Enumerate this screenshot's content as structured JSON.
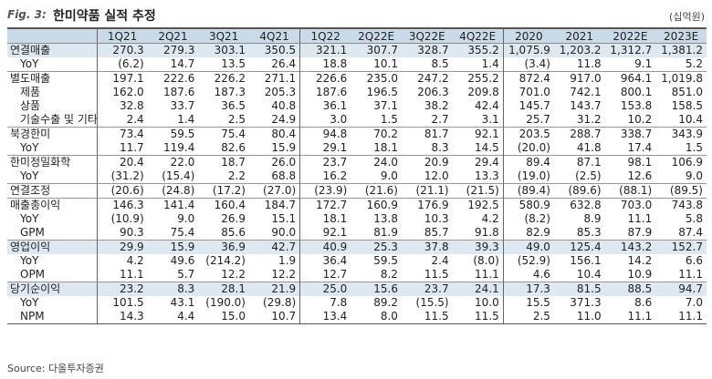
{
  "header": {
    "fig_label": "Fig. 3:",
    "title": "한미약품 실적 추정",
    "unit": "(십억원)"
  },
  "table": {
    "columns": [
      "1Q21",
      "2Q21",
      "3Q21",
      "4Q21",
      "1Q22",
      "2Q22E",
      "3Q22E",
      "4Q22E",
      "2020",
      "2021",
      "2022E",
      "2023E"
    ],
    "rows": [
      {
        "label": "연결매출",
        "values": [
          "270.3",
          "279.3",
          "303.1",
          "350.5",
          "321.1",
          "307.7",
          "328.7",
          "355.2",
          "1,075.9",
          "1,203.2",
          "1,312.7",
          "1,381.2"
        ],
        "style": "hl"
      },
      {
        "label": "YoY",
        "values": [
          "(6.2)",
          "14.7",
          "13.5",
          "26.4",
          "18.8",
          "10.1",
          "8.5",
          "1.4",
          "(3.4)",
          "11.8",
          "9.1",
          "5.2"
        ],
        "style": "sub"
      },
      {
        "label": "별도매출",
        "values": [
          "197.1",
          "222.6",
          "226.2",
          "271.1",
          "226.6",
          "235.0",
          "247.2",
          "255.2",
          "872.4",
          "917.0",
          "964.1",
          "1,019.8"
        ],
        "style": "grp"
      },
      {
        "label": "제품",
        "values": [
          "162.0",
          "187.6",
          "187.3",
          "205.3",
          "187.6",
          "196.5",
          "206.3",
          "209.8",
          "701.0",
          "742.1",
          "800.1",
          "851.0"
        ],
        "style": "sub"
      },
      {
        "label": "상품",
        "values": [
          "32.8",
          "33.7",
          "36.5",
          "40.8",
          "36.1",
          "37.1",
          "38.2",
          "42.4",
          "145.7",
          "143.7",
          "153.8",
          "158.5"
        ],
        "style": "sub"
      },
      {
        "label": "기술수출 및 기타",
        "values": [
          "2.4",
          "1.4",
          "2.5",
          "24.9",
          "3.0",
          "1.5",
          "2.7",
          "3.1",
          "25.7",
          "31.2",
          "10.2",
          "10.4"
        ],
        "style": "sub"
      },
      {
        "label": "북경한미",
        "values": [
          "73.4",
          "59.5",
          "75.4",
          "80.4",
          "94.8",
          "70.2",
          "81.7",
          "92.1",
          "203.5",
          "288.7",
          "338.7",
          "343.9"
        ],
        "style": "grp"
      },
      {
        "label": "YoY",
        "values": [
          "11.7",
          "119.4",
          "82.6",
          "15.9",
          "29.1",
          "18.1",
          "8.3",
          "14.5",
          "(20.0)",
          "41.8",
          "17.4",
          "1.5"
        ],
        "style": "sub"
      },
      {
        "label": "한미정밀화학",
        "values": [
          "20.4",
          "22.0",
          "18.7",
          "26.0",
          "23.7",
          "24.0",
          "20.9",
          "29.4",
          "89.4",
          "87.1",
          "98.1",
          "106.9"
        ],
        "style": "grp"
      },
      {
        "label": "YoY",
        "values": [
          "(31.2)",
          "(15.4)",
          "2.2",
          "68.8",
          "16.2",
          "9.0",
          "12.0",
          "13.3",
          "(19.0)",
          "(2.5)",
          "12.6",
          "9.0"
        ],
        "style": "sub"
      },
      {
        "label": "연결조정",
        "values": [
          "(20.6)",
          "(24.8)",
          "(17.2)",
          "(27.0)",
          "(23.9)",
          "(21.6)",
          "(21.1)",
          "(21.5)",
          "(89.4)",
          "(89.6)",
          "(88.1)",
          "(89.5)"
        ],
        "style": "grp"
      },
      {
        "label": "매출총이익",
        "values": [
          "146.3",
          "141.4",
          "160.4",
          "184.7",
          "172.7",
          "160.9",
          "176.9",
          "192.5",
          "580.9",
          "632.8",
          "703.0",
          "743.8"
        ],
        "style": "grp"
      },
      {
        "label": "YoY",
        "values": [
          "(10.9)",
          "9.0",
          "26.9",
          "15.1",
          "18.1",
          "13.8",
          "10.3",
          "4.2",
          "(8.2)",
          "8.9",
          "11.1",
          "5.8"
        ],
        "style": "sub"
      },
      {
        "label": "GPM",
        "values": [
          "90.3",
          "75.4",
          "85.6",
          "90.0",
          "92.1",
          "81.9",
          "85.7",
          "91.8",
          "82.9",
          "85.3",
          "87.9",
          "87.4"
        ],
        "style": "sub"
      },
      {
        "label": "영업이익",
        "values": [
          "29.9",
          "15.9",
          "36.9",
          "42.7",
          "40.9",
          "25.3",
          "37.8",
          "39.3",
          "49.0",
          "125.4",
          "143.2",
          "152.7"
        ],
        "style": "hl"
      },
      {
        "label": "YoY",
        "values": [
          "4.2",
          "49.6",
          "(214.2)",
          "1.9",
          "36.4",
          "59.5",
          "2.4",
          "(8.0)",
          "(52.9)",
          "156.1",
          "14.2",
          "6.6"
        ],
        "style": "sub"
      },
      {
        "label": "OPM",
        "values": [
          "11.1",
          "5.7",
          "12.2",
          "12.2",
          "12.7",
          "8.2",
          "11.5",
          "11.1",
          "4.6",
          "10.4",
          "10.9",
          "11.1"
        ],
        "style": "sub"
      },
      {
        "label": "당기순이익",
        "values": [
          "23.2",
          "8.3",
          "28.1",
          "21.9",
          "25.0",
          "15.6",
          "23.7",
          "24.1",
          "17.3",
          "81.5",
          "88.5",
          "94.7"
        ],
        "style": "hl"
      },
      {
        "label": "YoY",
        "values": [
          "101.5",
          "43.1",
          "(190.0)",
          "(29.8)",
          "7.8",
          "89.2",
          "(15.5)",
          "10.0",
          "15.5",
          "371.3",
          "8.6",
          "7.0"
        ],
        "style": "sub"
      },
      {
        "label": "NPM",
        "values": [
          "14.3",
          "4.4",
          "15.0",
          "10.7",
          "13.4",
          "8.0",
          "11.5",
          "11.5",
          "2.5",
          "11.0",
          "11.1",
          "11.1"
        ],
        "style": "sub"
      }
    ]
  },
  "source": "Source: 다올투자증권"
}
